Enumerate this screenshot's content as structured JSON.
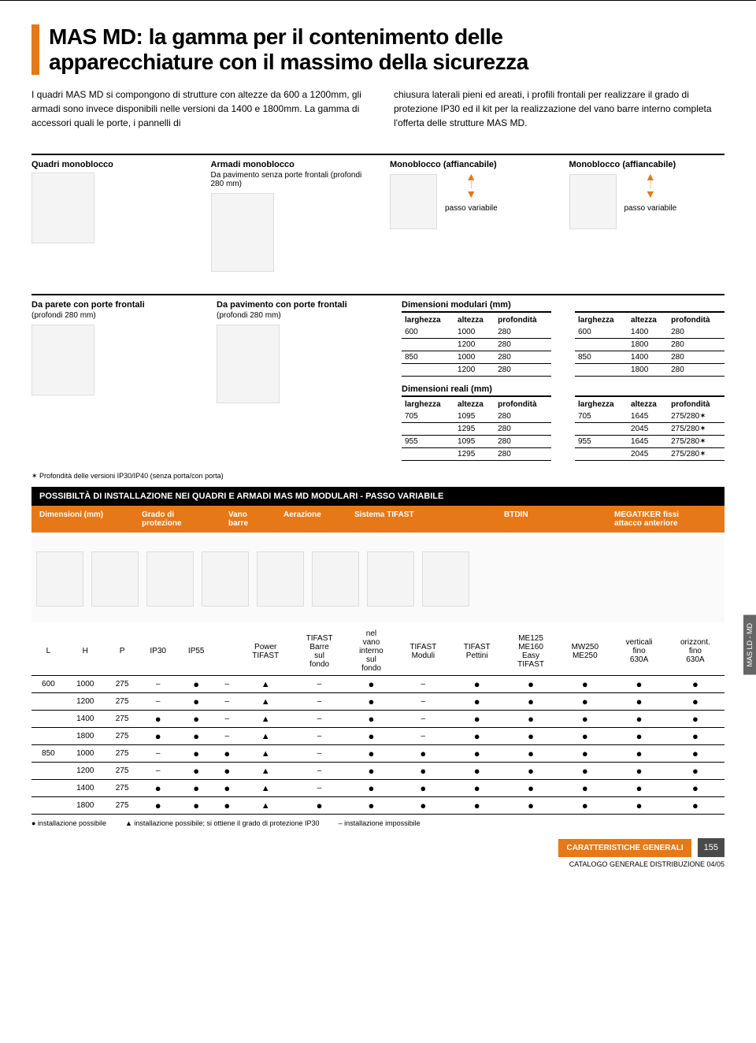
{
  "title_line1": "MAS MD: la gamma per il contenimento delle",
  "title_line2": "apparecchiature con il massimo della sicurezza",
  "intro_left": "I quadri MAS MD si compongono di strutture con altezze da 600 a 1200mm, gli armadi sono invece disponibili nelle versioni da 1400 e 1800mm. La gamma di accessori quali le porte, i pannelli di",
  "intro_right": "chiusura laterali pieni ed areati, i profili frontali per realizzare il grado di protezione IP30 ed il kit per la realizzazione del vano barre interno completa l'offerta delle strutture MAS MD.",
  "row1": {
    "c1": {
      "title": "Quadri monoblocco"
    },
    "c2": {
      "title": "Armadi monoblocco",
      "sub": "Da pavimento senza porte frontali (profondi 280 mm)"
    },
    "c3": {
      "title": "Monoblocco (affiancabile)",
      "step": "passo variabile"
    },
    "c4": {
      "title": "Monoblocco (affiancabile)",
      "step": "passo variabile"
    }
  },
  "row2": {
    "c1": {
      "title": "Da parete con porte frontali",
      "sub": "(profondi 280 mm)"
    },
    "c2": {
      "title": "Da pavimento con porte frontali",
      "sub": "(profondi 280 mm)"
    }
  },
  "dim_mod": {
    "header": "Dimensioni modulari (mm)",
    "cols": [
      "larghezza",
      "altezza",
      "profondità"
    ],
    "left": [
      [
        "600",
        "1000",
        "280"
      ],
      [
        "",
        "1200",
        "280"
      ],
      [
        "850",
        "1000",
        "280"
      ],
      [
        "",
        "1200",
        "280"
      ]
    ],
    "right": [
      [
        "600",
        "1400",
        "280"
      ],
      [
        "",
        "1800",
        "280"
      ],
      [
        "850",
        "1400",
        "280"
      ],
      [
        "",
        "1800",
        "280"
      ]
    ]
  },
  "dim_real": {
    "header": "Dimensioni reali (mm)",
    "cols": [
      "larghezza",
      "altezza",
      "profondità"
    ],
    "left": [
      [
        "705",
        "1095",
        "280"
      ],
      [
        "",
        "1295",
        "280"
      ],
      [
        "955",
        "1095",
        "280"
      ],
      [
        "",
        "1295",
        "280"
      ]
    ],
    "right": [
      [
        "705",
        "1645",
        "275/280✶"
      ],
      [
        "",
        "2045",
        "275/280✶"
      ],
      [
        "955",
        "1645",
        "275/280✶"
      ],
      [
        "",
        "2045",
        "275/280✶"
      ]
    ]
  },
  "footnote": "✶ Profondità delle versioni IP30/IP40 (senza porta/con porta)",
  "black_bar": "POSSIBILTÀ DI INSTALLAZIONE NEI QUADRI E ARMADI MAS MD   MODULARI - PASSO VARIABILE",
  "orange_cols": [
    "Dimensioni (mm)",
    "Grado di protezione",
    "Vano barre",
    "Aerazione",
    "Sistema TIFAST",
    "BTDIN",
    "MEGATIKER fissi attacco anteriore"
  ],
  "install_headers": [
    "L",
    "H",
    "P",
    "IP30",
    "IP55",
    "",
    "Power TIFAST",
    "TIFAST Barre sul fondo",
    "nel vano interno sul fondo",
    "TIFAST Moduli",
    "TIFAST Pettini",
    "ME125 ME160 Easy TIFAST",
    "MW250 ME250",
    "verticali fino 630A",
    "orizzont. fino 630A"
  ],
  "install_rows": [
    {
      "L": "600",
      "H": "1000",
      "P": "275",
      "ip30": "–",
      "ip55": "●",
      "vb": "–",
      "pt": "▲",
      "tb": "–",
      "vi": "●",
      "tm": "–",
      "tp": "●",
      "me": "●",
      "mw": "●",
      "v": "●",
      "o": "●"
    },
    {
      "L": "",
      "H": "1200",
      "P": "275",
      "ip30": "–",
      "ip55": "●",
      "vb": "–",
      "pt": "▲",
      "tb": "–",
      "vi": "●",
      "tm": "–",
      "tp": "●",
      "me": "●",
      "mw": "●",
      "v": "●",
      "o": "●"
    },
    {
      "L": "",
      "H": "1400",
      "P": "275",
      "ip30": "●",
      "ip55": "●",
      "vb": "–",
      "pt": "▲",
      "tb": "–",
      "vi": "●",
      "tm": "–",
      "tp": "●",
      "me": "●",
      "mw": "●",
      "v": "●",
      "o": "●"
    },
    {
      "L": "",
      "H": "1800",
      "P": "275",
      "ip30": "●",
      "ip55": "●",
      "vb": "–",
      "pt": "▲",
      "tb": "–",
      "vi": "●",
      "tm": "–",
      "tp": "●",
      "me": "●",
      "mw": "●",
      "v": "●",
      "o": "●"
    },
    {
      "L": "850",
      "H": "1000",
      "P": "275",
      "ip30": "–",
      "ip55": "●",
      "vb": "●",
      "pt": "▲",
      "tb": "–",
      "vi": "●",
      "tm": "●",
      "tp": "●",
      "me": "●",
      "mw": "●",
      "v": "●",
      "o": "●"
    },
    {
      "L": "",
      "H": "1200",
      "P": "275",
      "ip30": "–",
      "ip55": "●",
      "vb": "●",
      "pt": "▲",
      "tb": "–",
      "vi": "●",
      "tm": "●",
      "tp": "●",
      "me": "●",
      "mw": "●",
      "v": "●",
      "o": "●"
    },
    {
      "L": "",
      "H": "1400",
      "P": "275",
      "ip30": "●",
      "ip55": "●",
      "vb": "●",
      "pt": "▲",
      "tb": "–",
      "vi": "●",
      "tm": "●",
      "tp": "●",
      "me": "●",
      "mw": "●",
      "v": "●",
      "o": "●"
    },
    {
      "L": "",
      "H": "1800",
      "P": "275",
      "ip30": "●",
      "ip55": "●",
      "vb": "●",
      "pt": "▲",
      "tb": "●",
      "vi": "●",
      "tm": "●",
      "tp": "●",
      "me": "●",
      "mw": "●",
      "v": "●",
      "o": "●"
    }
  ],
  "legend": {
    "poss": "● installazione possibile",
    "ip30": "▲ installazione possibile; si ottiene il grado di protezione IP30",
    "imposs": "– installazione impossibile"
  },
  "side_tab": "MAS LD - MD",
  "footer_label": "CARATTERISTICHE GENERALI",
  "page_num": "155",
  "footer_sub": "CATALOGO GENERALE DISTRIBUZIONE 04/05"
}
